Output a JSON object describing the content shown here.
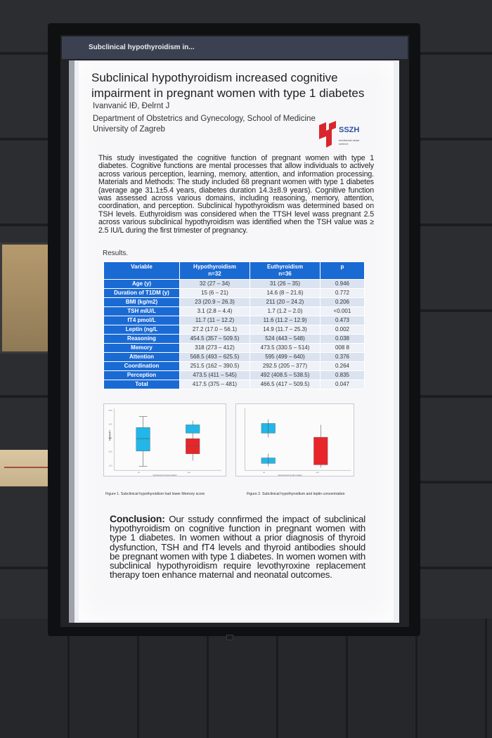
{
  "titlebar": {
    "text": "Subclinical hypothyroidism in..."
  },
  "poster": {
    "title": "Subclinical hypothyroidism increased cognitive impairment in pregnant women with type 1 diabetes",
    "authors": "Ivanvanić IĐ, Đelrnt J",
    "department": "Department of Obstetrics and Gynecology, School of Medicine",
    "university": "University of Zagreb",
    "logo_text": "SSZH",
    "logo_subtext": "medicinski sklad\nscience",
    "abstract": "This study investigated the cognitive function of pregnant women with type 1 diabetes. Cognitive functions are mental processes that allow individuals to actively across various perception, learning, memory, attention, and information processing. Materials and Methods: The study included 68 pregnant women with type 1 diabetes (average age 31.1±5.4 years, diabetes duration 14.3±8.9 years). Cognitive function was assessed across various domains, including reasoning, memory, attention, coordination, and perception. Subclinical hypothyroidism was determined based on TSH levels. Euthyroidism was considered when the TTSH level wass pregnant 2.5 across various subclinical hypothyroidism was identified when the TSH value was ≥ 2.5 IU/L during the first trimester of pregnancy.",
    "results_label": "Results.",
    "table": {
      "headers": [
        "Variable",
        "Hypothyroidism\nn=32",
        "Euthyroidism\nn=36",
        "p"
      ],
      "rows": [
        [
          "Age (y)",
          "32 (27 – 34)",
          "31 (26 – 35)",
          "0.946"
        ],
        [
          "Duration of T1DM (y)",
          "15 (6 – 21)",
          "14.6 (8 – 21.6)",
          "0.772"
        ],
        [
          "BMI (kg/m2)",
          "23 (20.9 – 26.3)",
          "211 (20 – 24.2)",
          "0.206"
        ],
        [
          "TSH mIU/L",
          "3.1 (2.8 – 4.4)",
          "1.7 (1.2 – 2.0)",
          "<0.001"
        ],
        [
          "fT4 pmol/L",
          "11.7 (11 – 12.2)",
          "11.6 (11.2 – 12.9)",
          "0.473"
        ],
        [
          "Leptin (ng/L",
          "27.2 (17.0 – 56.1)",
          "14.9 (11.7 – 25.3)",
          "0.002"
        ],
        [
          "Reasoning",
          "454.5 (357 – 509.5)",
          "524 (443 – 548)",
          "0.038"
        ],
        [
          "Memory",
          "318 (273 – 412)",
          "473.5 (330.5 – 514)",
          "008 8"
        ],
        [
          "Attention",
          "568.5 (493 – 625.5)",
          "595 (499 – 640)",
          "0.376"
        ],
        [
          "Coordination",
          "251.5 (162 – 390.5)",
          "292.5 (205 – 377)",
          "0.264"
        ],
        [
          "Perception",
          "473.5 (411 – 545)",
          "492 (408.5 – 538.5)",
          "0.835"
        ],
        [
          "Total",
          "417.5 (375 – 481)",
          "466.5 (417 – 509.5)",
          "0.047"
        ]
      ]
    },
    "figure1": {
      "caption": "Figure 1. Subclinical hypothyroidism had lower Memory score",
      "ylabel": "MEMORY",
      "xlabel": "Subclinical hypothyroidism",
      "colors": [
        "#22b7e8",
        "#e8262a"
      ]
    },
    "figure2": {
      "caption": "Figure 2. Subclinical hypothyroidism and leptin concentration",
      "xlabel": "Subclinical hypothyroidism",
      "colors": [
        "#22b7e8",
        "#e8262a"
      ]
    },
    "conclusion_label": "Conclusion:",
    "conclusion": "Our sstudy connfirmed the impact of subclinical hypothyroidism on cognitive function in pregnant women with type 1 diabetes. In women without a prior diagnosis of thyroid dysfunction, TSH and fT4 levels and thyroid antibodies should be pregnant women with type 1 diabetes. In women women with subclinical hypothyroidism require levothyroxine replacement therapy toen enhance maternal and neonatal outcomes."
  }
}
